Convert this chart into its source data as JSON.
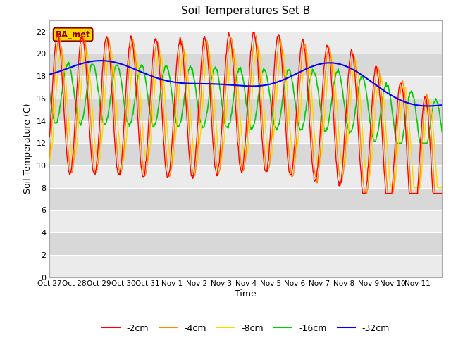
{
  "title": "Soil Temperatures Set B",
  "xlabel": "Time",
  "ylabel": "Soil Temperature (C)",
  "ylim": [
    0,
    23
  ],
  "yticks": [
    0,
    2,
    4,
    6,
    8,
    10,
    12,
    14,
    16,
    18,
    20,
    22
  ],
  "x_labels": [
    "Oct 27",
    "Oct 28",
    "Oct 29",
    "Oct 30",
    "Oct 31",
    "Nov 1",
    "Nov 2",
    "Nov 3",
    "Nov 4",
    "Nov 5",
    "Nov 6",
    "Nov 7",
    "Nov 8",
    "Nov 9",
    "Nov 10",
    "Nov 11"
  ],
  "annotation": "BA_met",
  "annotation_color": "#8B0000",
  "annotation_bg": "#FFD700",
  "series_colors": {
    "-2cm": "#FF0000",
    "-4cm": "#FF8C00",
    "-8cm": "#FFD700",
    "-16cm": "#00CC00",
    "-32cm": "#0000FF"
  },
  "legend_labels": [
    "-2cm",
    "-4cm",
    "-8cm",
    "-16cm",
    "-32cm"
  ],
  "bg_band_light": "#EBEBEB",
  "bg_band_dark": "#D8D8D8",
  "n_days": 16,
  "points_per_day": 48,
  "fig_width": 6.4,
  "fig_height": 4.8,
  "dpi": 100
}
